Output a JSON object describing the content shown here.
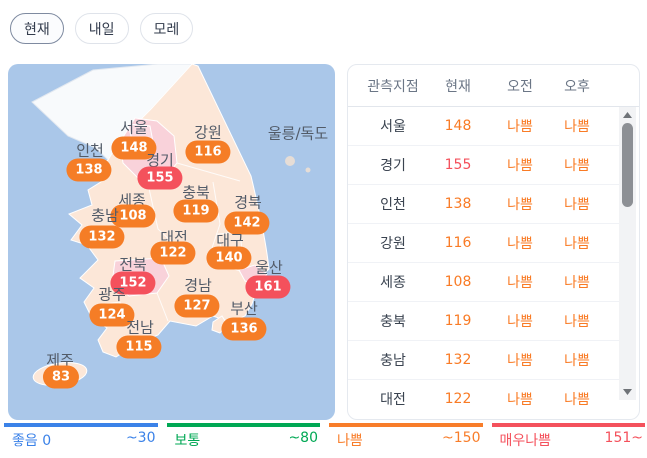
{
  "tabs": [
    {
      "label": "현재",
      "selected": true
    },
    {
      "label": "내일",
      "selected": false
    },
    {
      "label": "모레",
      "selected": false
    }
  ],
  "map": {
    "island_label": "울릉/독도",
    "regions": [
      {
        "name": "서울",
        "value": "148",
        "severity": "bad"
      },
      {
        "name": "강원",
        "value": "116",
        "severity": "bad"
      },
      {
        "name": "인천",
        "value": "138",
        "severity": "bad"
      },
      {
        "name": "경기",
        "value": "155",
        "severity": "verybad"
      },
      {
        "name": "세종",
        "value": "108",
        "severity": "bad"
      },
      {
        "name": "충북",
        "value": "119",
        "severity": "bad"
      },
      {
        "name": "경북",
        "value": "142",
        "severity": "bad"
      },
      {
        "name": "충남",
        "value": "132",
        "severity": "bad"
      },
      {
        "name": "대전",
        "value": "122",
        "severity": "bad"
      },
      {
        "name": "대구",
        "value": "140",
        "severity": "bad"
      },
      {
        "name": "전북",
        "value": "152",
        "severity": "verybad"
      },
      {
        "name": "울산",
        "value": "161",
        "severity": "verybad"
      },
      {
        "name": "광주",
        "value": "124",
        "severity": "bad"
      },
      {
        "name": "경남",
        "value": "127",
        "severity": "bad"
      },
      {
        "name": "부산",
        "value": "136",
        "severity": "bad"
      },
      {
        "name": "전남",
        "value": "115",
        "severity": "bad"
      },
      {
        "name": "제주",
        "value": "83",
        "severity": "bad"
      }
    ]
  },
  "table": {
    "headers": [
      "관측지점",
      "현재",
      "오전",
      "오후"
    ],
    "rows": [
      {
        "region": "서울",
        "value": "148",
        "severity": "bad",
        "morning": "나쁨",
        "afternoon": "나쁨"
      },
      {
        "region": "경기",
        "value": "155",
        "severity": "verybad",
        "morning": "나쁨",
        "afternoon": "나쁨"
      },
      {
        "region": "인천",
        "value": "138",
        "severity": "bad",
        "morning": "나쁨",
        "afternoon": "나쁨"
      },
      {
        "region": "강원",
        "value": "116",
        "severity": "bad",
        "morning": "나쁨",
        "afternoon": "나쁨"
      },
      {
        "region": "세종",
        "value": "108",
        "severity": "bad",
        "morning": "나쁨",
        "afternoon": "나쁨"
      },
      {
        "region": "충북",
        "value": "119",
        "severity": "bad",
        "morning": "나쁨",
        "afternoon": "나쁨"
      },
      {
        "region": "충남",
        "value": "132",
        "severity": "bad",
        "morning": "나쁨",
        "afternoon": "나쁨"
      },
      {
        "region": "대전",
        "value": "122",
        "severity": "bad",
        "morning": "나쁨",
        "afternoon": "나쁨"
      }
    ]
  },
  "legend": [
    {
      "label": "좋음",
      "min": "0",
      "range": "~30",
      "color": "#3b82e8"
    },
    {
      "label": "보통",
      "min": "",
      "range": "~80",
      "color": "#00a854"
    },
    {
      "label": "나쁨",
      "min": "",
      "range": "~150",
      "color": "#f87d2a"
    },
    {
      "label": "매우나쁨",
      "min": "",
      "range": "151~",
      "color": "#f4515c"
    }
  ],
  "colors": {
    "sea": "#aac7e9",
    "land": "#fce7d8",
    "land_pink": "#f9d2da",
    "north_korea": "#f8fafc",
    "badge_bad": "#f57d26",
    "badge_verybad": "#f4515c"
  }
}
